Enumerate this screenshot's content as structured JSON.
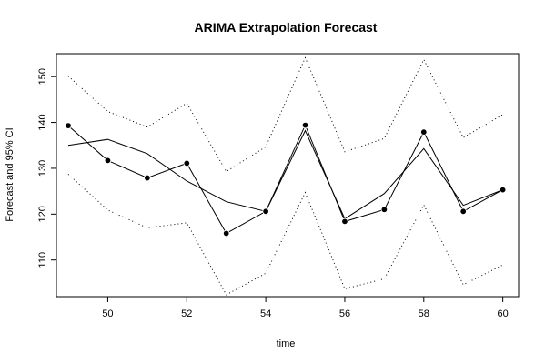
{
  "chart_data": {
    "type": "line",
    "title": "ARIMA Extrapolation Forecast",
    "xlabel": "time",
    "ylabel": "Forecast and 95% CI",
    "xlim": [
      48.7,
      60.4
    ],
    "ylim": [
      102,
      155
    ],
    "x_ticks": [
      50,
      52,
      54,
      56,
      58,
      60
    ],
    "y_ticks": [
      110,
      120,
      130,
      140,
      150
    ],
    "x": [
      49,
      50,
      51,
      52,
      53,
      54,
      55,
      56,
      57,
      58,
      59,
      60
    ],
    "series": [
      {
        "values": [
          139.3,
          131.7,
          127.9,
          131.1,
          115.8,
          120.6,
          139.4,
          118.4,
          121.0,
          137.9,
          120.6,
          125.3
        ]
      },
      {
        "values": [
          135.0,
          136.3,
          133.2,
          127.2,
          122.7,
          120.6,
          138.2,
          119.0,
          124.5,
          134.3,
          121.9,
          125.3
        ]
      },
      {
        "values": [
          150.1,
          142.4,
          139.0,
          144.2,
          129.3,
          134.7,
          154.1,
          133.6,
          136.5,
          153.7,
          136.7,
          141.7
        ]
      },
      {
        "values": [
          128.7,
          120.9,
          117.0,
          118.1,
          102.4,
          107.1,
          124.7,
          103.7,
          105.9,
          122.0,
          104.6,
          108.9
        ]
      }
    ],
    "grid": false,
    "legend": "none"
  }
}
